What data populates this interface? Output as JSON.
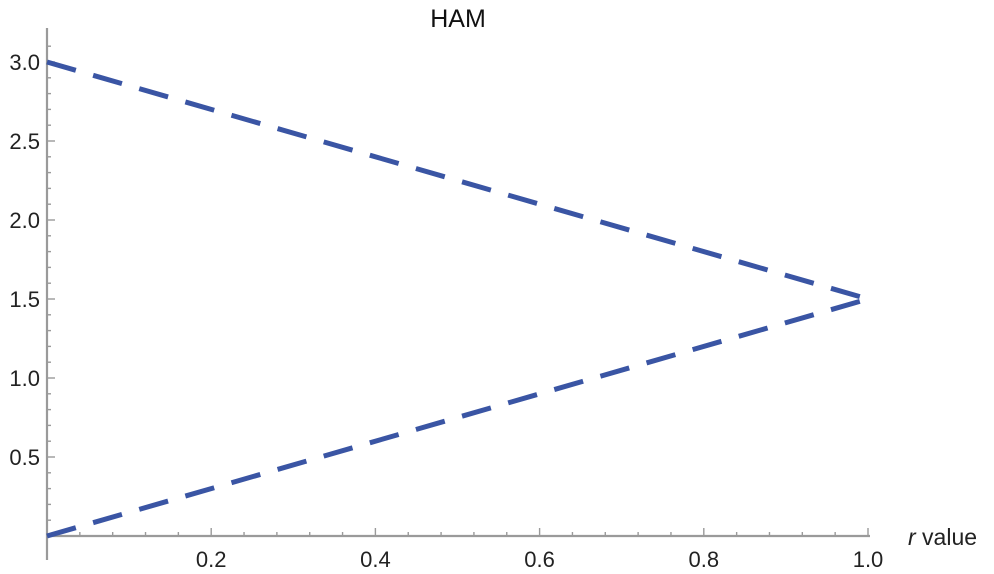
{
  "chart_data": {
    "type": "line",
    "title": "HAM",
    "xlabel_var": "r",
    "xlabel_rest": " value",
    "xlim": [
      0,
      1
    ],
    "ylim": [
      0,
      3.15
    ],
    "x_ticks": [
      0.2,
      0.4,
      0.6,
      0.8,
      1.0
    ],
    "x_tick_labels": [
      "0.2",
      "0.4",
      "0.6",
      "0.8",
      "1.0"
    ],
    "y_ticks": [
      0.5,
      1.0,
      1.5,
      2.0,
      2.5,
      3.0
    ],
    "y_tick_labels": [
      "0.5",
      "1.0",
      "1.5",
      "2.0",
      "2.5",
      "3.0"
    ],
    "line_color": "#3a55a4",
    "line_style": "dashed",
    "grid": false,
    "series": [
      {
        "x": [
          0,
          1
        ],
        "y": [
          3.0,
          1.5
        ]
      },
      {
        "x": [
          0,
          1
        ],
        "y": [
          0.0,
          1.5
        ]
      }
    ]
  }
}
